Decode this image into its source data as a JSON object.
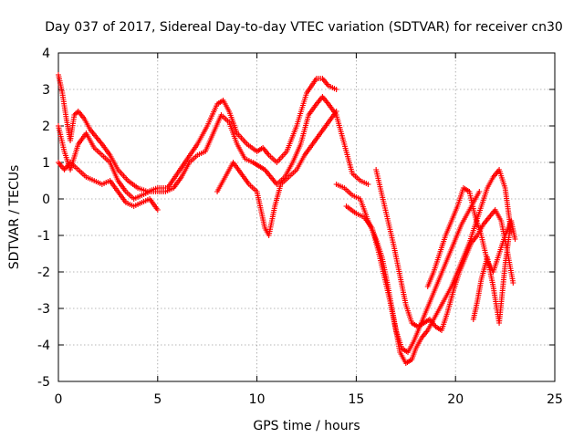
{
  "chart_data": {
    "type": "scatter",
    "title": "Day 037 of 2017, Sidereal Day-to-day VTEC variation (SDTVAR) for receiver cn30",
    "xlabel": "GPS time / hours",
    "ylabel": "SDTVAR / TECUs",
    "xlim": [
      0,
      25
    ],
    "ylim": [
      -5,
      4
    ],
    "xticks": [
      0,
      5,
      10,
      15,
      20,
      25
    ],
    "yticks": [
      -5,
      -4,
      -3,
      -2,
      -1,
      0,
      1,
      2,
      3,
      4
    ],
    "grid": true,
    "legend": "none",
    "marker": "+",
    "color": "#ff0000",
    "series": [
      {
        "x": [
          0.0,
          0.2,
          0.4,
          0.6,
          0.8,
          1.0,
          1.3,
          1.6,
          1.9,
          2.2,
          2.6,
          3.0,
          3.5,
          4.0,
          4.5,
          5.0,
          5.5,
          6.0,
          6.5,
          7.0,
          7.5,
          8.0,
          8.3,
          8.6,
          9.0,
          9.5,
          10.0,
          10.3,
          10.6,
          11.0,
          11.5,
          12.0,
          12.5,
          13.0,
          13.3,
          13.6,
          14.0
        ],
        "y": [
          3.4,
          2.9,
          2.2,
          1.6,
          2.3,
          2.4,
          2.2,
          1.9,
          1.7,
          1.5,
          1.2,
          0.8,
          0.5,
          0.3,
          0.2,
          0.3,
          0.3,
          0.7,
          1.1,
          1.5,
          2.0,
          2.6,
          2.7,
          2.4,
          1.8,
          1.5,
          1.3,
          1.4,
          1.2,
          1.0,
          1.3,
          2.0,
          2.9,
          3.3,
          3.3,
          3.1,
          3.0
        ]
      },
      {
        "x": [
          0.0,
          0.3,
          0.6,
          1.0,
          1.4,
          1.8,
          2.2,
          2.6,
          3.0,
          3.4,
          3.8,
          4.2,
          4.6,
          5.0,
          5.4,
          5.8,
          6.2,
          6.6,
          7.0,
          7.4,
          7.8,
          8.2,
          8.6,
          9.0,
          9.4,
          9.8,
          10.1,
          10.4,
          10.7,
          11.0,
          11.4,
          11.8,
          12.2,
          12.6,
          13.0,
          13.3,
          13.6,
          14.0,
          14.4,
          14.8,
          15.2,
          15.6
        ],
        "y": [
          2.0,
          1.3,
          0.8,
          1.5,
          1.8,
          1.4,
          1.2,
          1.0,
          0.5,
          0.2,
          0.0,
          0.1,
          0.2,
          0.2,
          0.2,
          0.3,
          0.6,
          1.0,
          1.2,
          1.3,
          1.8,
          2.3,
          2.1,
          1.5,
          1.1,
          1.0,
          0.9,
          0.8,
          0.6,
          0.4,
          0.6,
          1.0,
          1.5,
          2.3,
          2.6,
          2.8,
          2.6,
          2.3,
          1.5,
          0.7,
          0.5,
          0.4
        ]
      },
      {
        "x": [
          0.0,
          0.3,
          0.6,
          1.0,
          1.4,
          1.8,
          2.2,
          2.6,
          3.0,
          3.4,
          3.8,
          4.2,
          4.6,
          5.0
        ],
        "y": [
          1.0,
          0.8,
          1.0,
          0.8,
          0.6,
          0.5,
          0.4,
          0.5,
          0.2,
          -0.1,
          -0.2,
          -0.1,
          0.0,
          -0.3
        ]
      },
      {
        "x": [
          8.0,
          8.4,
          8.8,
          9.2,
          9.6,
          10.0,
          10.2,
          10.4,
          10.6,
          10.9,
          11.2,
          11.6,
          12.0,
          12.4,
          12.8,
          13.2,
          13.6,
          14.0
        ],
        "y": [
          0.2,
          0.6,
          1.0,
          0.7,
          0.4,
          0.2,
          -0.3,
          -0.8,
          -1.0,
          -0.2,
          0.4,
          0.6,
          0.8,
          1.2,
          1.5,
          1.8,
          2.1,
          2.4
        ]
      },
      {
        "x": [
          14.0,
          14.4,
          14.8,
          15.2,
          15.6,
          16.0,
          16.3,
          16.6,
          16.9,
          17.2,
          17.5,
          17.8,
          18.0,
          18.3,
          18.6,
          18.9,
          19.2,
          19.5,
          19.8,
          20.1,
          20.4,
          20.7,
          21.0,
          21.3,
          21.6,
          21.9,
          22.2,
          22.5,
          22.8
        ],
        "y": [
          0.4,
          0.3,
          0.1,
          0.0,
          -0.6,
          -1.1,
          -1.6,
          -2.4,
          -3.3,
          -4.2,
          -4.5,
          -4.4,
          -4.1,
          -3.8,
          -3.6,
          -3.3,
          -3.0,
          -2.7,
          -2.4,
          -2.0,
          -1.6,
          -1.2,
          -0.7,
          -0.2,
          0.3,
          0.6,
          0.8,
          0.3,
          -0.9
        ]
      },
      {
        "x": [
          14.5,
          15.0,
          15.4,
          15.8,
          16.1,
          16.4,
          16.7,
          17.0,
          17.3,
          17.6,
          17.9,
          18.2,
          18.5,
          18.8,
          19.1,
          19.4,
          19.7,
          20.0,
          20.3,
          20.6,
          20.9,
          21.2
        ],
        "y": [
          -0.2,
          -0.4,
          -0.5,
          -0.8,
          -1.4,
          -2.1,
          -2.8,
          -3.6,
          -4.1,
          -4.2,
          -3.9,
          -3.5,
          -3.1,
          -2.7,
          -2.3,
          -1.9,
          -1.5,
          -1.1,
          -0.7,
          -0.4,
          -0.1,
          0.2
        ]
      },
      {
        "x": [
          16.0,
          16.3,
          16.6,
          16.9,
          17.2,
          17.5,
          17.8,
          18.1,
          18.4,
          18.7,
          19.0,
          19.3,
          19.6,
          19.9,
          20.2,
          20.5,
          20.8,
          21.1,
          21.4,
          21.7,
          22.0,
          22.3,
          22.6,
          22.9
        ],
        "y": [
          0.8,
          0.1,
          -0.6,
          -1.3,
          -2.1,
          -2.9,
          -3.4,
          -3.5,
          -3.4,
          -3.3,
          -3.5,
          -3.6,
          -3.1,
          -2.5,
          -2.0,
          -1.6,
          -1.2,
          -1.0,
          -0.7,
          -0.5,
          -0.3,
          -0.6,
          -1.4,
          -2.3
        ]
      },
      {
        "x": [
          18.6,
          18.9,
          19.2,
          19.5,
          19.8,
          20.1,
          20.4,
          20.7,
          21.0,
          21.3,
          21.6,
          21.9,
          22.2,
          22.5,
          22.8
        ],
        "y": [
          -2.4,
          -2.0,
          -1.5,
          -1.0,
          -0.6,
          -0.2,
          0.3,
          0.2,
          -0.5,
          -1.0,
          -1.7,
          -2.0,
          -1.5,
          -1.0,
          -0.6
        ]
      },
      {
        "x": [
          20.9,
          21.1,
          21.3,
          21.6,
          21.9,
          22.2,
          22.5,
          22.8,
          23.0
        ],
        "y": [
          -3.3,
          -2.8,
          -2.2,
          -1.6,
          -2.4,
          -3.4,
          -1.8,
          -0.6,
          -1.1
        ]
      }
    ]
  }
}
